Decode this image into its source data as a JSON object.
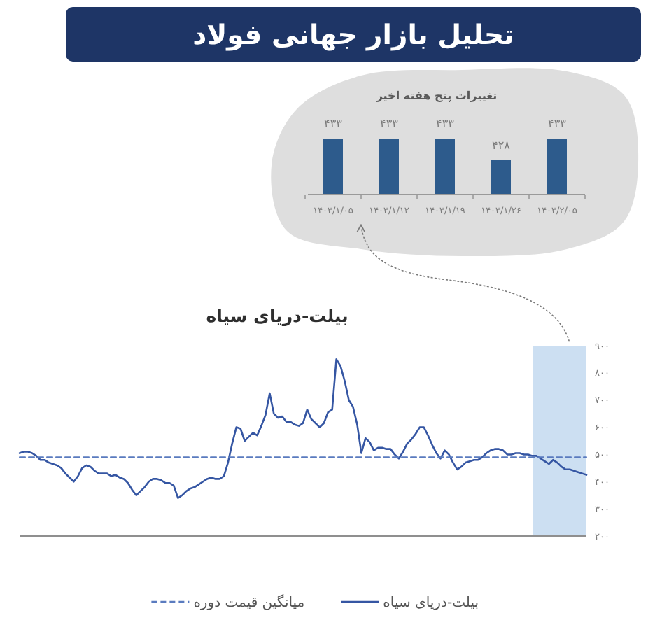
{
  "chart_data": [
    {
      "type": "other",
      "title": "تحلیل بازار جهانی فولاد"
    },
    {
      "type": "bar",
      "title": "تغییرات پنج هفته اخیر",
      "categories": [
        "۱۴۰۳/۱/۰۵",
        "۱۴۰۳/۱/۱۲",
        "۱۴۰۳/۱/۱۹",
        "۱۴۰۳/۱/۲۶",
        "۱۴۰۳/۲/۰۵"
      ],
      "values": [
        433,
        433,
        433,
        428,
        433
      ],
      "color": "#2d5b8c",
      "value_labels": [
        "۴۳۳",
        "۴۳۳",
        "۴۳۳",
        "۴۲۸",
        "۴۳۳"
      ],
      "ylim": [
        420,
        433
      ],
      "tick_labels": "x"
    },
    {
      "type": "line",
      "title": "بیلت-دریای سیاه",
      "categories": [
        null,
        null,
        null,
        null,
        null,
        null,
        null,
        null,
        null,
        null,
        null,
        null,
        null,
        null,
        null,
        null,
        null,
        null,
        null,
        null,
        null,
        null,
        null,
        null,
        null,
        null,
        null,
        null,
        null,
        null,
        null,
        null,
        null,
        null,
        null,
        null,
        null,
        null,
        null,
        null,
        null,
        null,
        null,
        null,
        null,
        null,
        null,
        null,
        null,
        null,
        null,
        null,
        null,
        null,
        null,
        null,
        null,
        null,
        null,
        null,
        null,
        null,
        null,
        null,
        null,
        null,
        null,
        null,
        null,
        null,
        null,
        null,
        null,
        null,
        null,
        null,
        null,
        null,
        null,
        null,
        null,
        null,
        null,
        null,
        null,
        null,
        null,
        null,
        null,
        null,
        null,
        null,
        null,
        null,
        null,
        null,
        null,
        null,
        null,
        null,
        null,
        null,
        null,
        null,
        null,
        null,
        null,
        null,
        null,
        null,
        null,
        null,
        null,
        null,
        null,
        null,
        null,
        null,
        null,
        null,
        null,
        null,
        null,
        null,
        null,
        null,
        null,
        null,
        null,
        null,
        null,
        null,
        null,
        null,
        null,
        null,
        null
      ],
      "series": [
        {
          "name": "بیلت-دریای سیاه",
          "color": "#3556a3",
          "values": [
            505,
            510,
            510,
            505,
            495,
            480,
            480,
            470,
            465,
            460,
            450,
            430,
            415,
            400,
            420,
            450,
            460,
            455,
            440,
            430,
            430,
            430,
            420,
            425,
            415,
            410,
            395,
            370,
            350,
            365,
            380,
            400,
            410,
            410,
            405,
            395,
            395,
            385,
            340,
            350,
            365,
            375,
            380,
            390,
            400,
            410,
            415,
            410,
            410,
            420,
            470,
            540,
            600,
            595,
            550,
            565,
            580,
            570,
            605,
            645,
            725,
            650,
            635,
            640,
            620,
            620,
            610,
            605,
            615,
            665,
            630,
            615,
            600,
            615,
            655,
            665,
            850,
            825,
            770,
            700,
            675,
            610,
            505,
            560,
            545,
            515,
            525,
            525,
            520,
            520,
            500,
            485,
            510,
            540,
            555,
            575,
            600,
            600,
            570,
            535,
            505,
            485,
            515,
            500,
            470,
            445,
            455,
            470,
            475,
            480,
            480,
            490,
            505,
            515,
            520,
            520,
            515,
            500,
            500,
            505,
            505,
            500,
            500,
            495,
            495,
            485,
            475,
            465,
            480,
            470,
            455,
            445,
            445,
            440,
            435,
            430,
            425
          ]
        },
        {
          "name": "میانگین قیمت دوره",
          "color": "#5a7bbf",
          "line_style": "dashed",
          "values": [
            490,
            490,
            490,
            490,
            490,
            490,
            490,
            490,
            490,
            490,
            490,
            490,
            490,
            490,
            490,
            490,
            490,
            490,
            490,
            490,
            490,
            490,
            490,
            490,
            490,
            490,
            490,
            490,
            490,
            490,
            490,
            490,
            490,
            490,
            490,
            490,
            490,
            490,
            490,
            490,
            490,
            490,
            490,
            490,
            490,
            490,
            490,
            490,
            490,
            490,
            490,
            490,
            490,
            490,
            490,
            490,
            490,
            490,
            490,
            490,
            490,
            490,
            490,
            490,
            490,
            490,
            490,
            490,
            490,
            490,
            490,
            490,
            490,
            490,
            490,
            490,
            490,
            490,
            490,
            490,
            490,
            490,
            490,
            490,
            490,
            490,
            490,
            490,
            490,
            490,
            490,
            490,
            490,
            490,
            490,
            490,
            490,
            490,
            490,
            490,
            490,
            490,
            490,
            490,
            490,
            490,
            490,
            490,
            490,
            490,
            490,
            490,
            490,
            490,
            490,
            490,
            490,
            490,
            490,
            490,
            490,
            490,
            490,
            490,
            490,
            490,
            490,
            490,
            490,
            490,
            490,
            490,
            490,
            490,
            490,
            490,
            490
          ]
        }
      ],
      "ylim": [
        200,
        900
      ],
      "yticks": [
        {
          "value": 200,
          "label": "۲۰۰"
        },
        {
          "value": 300,
          "label": "۳۰۰"
        },
        {
          "value": 400,
          "label": "۴۰۰"
        },
        {
          "value": 500,
          "label": "۵۰۰"
        },
        {
          "value": 600,
          "label": "۶۰۰"
        },
        {
          "value": 700,
          "label": "۷۰۰"
        },
        {
          "value": 800,
          "label": "۸۰۰"
        },
        {
          "value": 900,
          "label": "۹۰۰"
        }
      ],
      "legend": "bottom"
    }
  ]
}
